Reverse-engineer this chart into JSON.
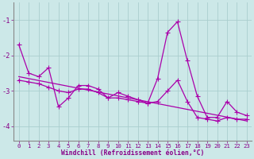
{
  "x": [
    0,
    1,
    2,
    3,
    4,
    5,
    6,
    7,
    8,
    9,
    10,
    11,
    12,
    13,
    14,
    15,
    16,
    17,
    18,
    19,
    20,
    21,
    22,
    23
  ],
  "line1": [
    -1.7,
    -2.5,
    -2.6,
    -2.35,
    -3.45,
    -3.2,
    -2.85,
    -2.85,
    -2.95,
    -3.2,
    -3.05,
    -3.15,
    -3.25,
    -3.35,
    -2.65,
    -1.35,
    -1.05,
    -2.15,
    -3.15,
    -3.75,
    -3.75,
    -3.3,
    -3.6,
    -3.7
  ],
  "line2": [
    -2.7,
    -2.75,
    -2.8,
    -2.9,
    -3.0,
    -3.05,
    -2.95,
    -2.95,
    -3.05,
    -3.2,
    -3.2,
    -3.25,
    -3.3,
    -3.35,
    -3.3,
    -3.0,
    -2.7,
    -3.3,
    -3.75,
    -3.8,
    -3.85,
    -3.75,
    -3.8,
    -3.8
  ],
  "line3_x": [
    0,
    23
  ],
  "line3_y": [
    -2.6,
    -3.85
  ],
  "xlabel": "Windchill (Refroidissement éolien,°C)",
  "ylim": [
    -4.4,
    -0.5
  ],
  "xlim": [
    -0.5,
    23.5
  ],
  "yticks": [
    -4,
    -3,
    -2,
    -1
  ],
  "xticks": [
    0,
    1,
    2,
    3,
    4,
    5,
    6,
    7,
    8,
    9,
    10,
    11,
    12,
    13,
    14,
    15,
    16,
    17,
    18,
    19,
    20,
    21,
    22,
    23
  ],
  "line_color": "#aa00aa",
  "bg_color": "#cce8e8",
  "grid_color": "#aacece",
  "marker": "+",
  "markersize": 4,
  "linewidth": 0.9,
  "tick_fontsize": 5.2,
  "label_fontsize": 5.8,
  "tick_color": "#880088",
  "label_color": "#880088"
}
